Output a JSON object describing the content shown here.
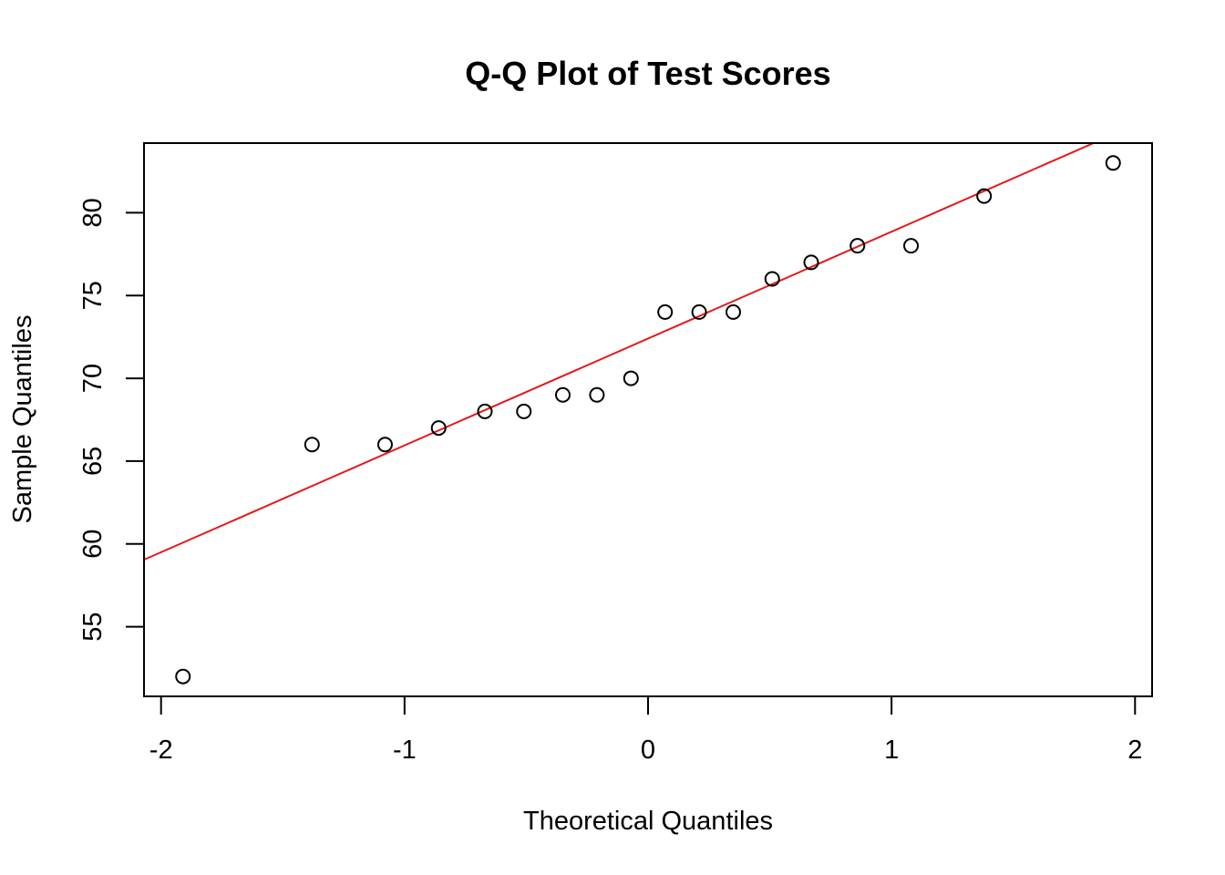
{
  "chart_data": {
    "type": "scatter",
    "title": "Q-Q Plot of Test Scores",
    "xlabel": "Theoretical Quantiles",
    "ylabel": "Sample Quantiles",
    "xlim": [
      -2.07,
      2.07
    ],
    "ylim": [
      50.8,
      84.2
    ],
    "x_ticks": [
      -2,
      -1,
      0,
      1,
      2
    ],
    "x_tick_labels": [
      "-2",
      "-1",
      "0",
      "1",
      "2"
    ],
    "y_ticks": [
      55,
      60,
      65,
      70,
      75,
      80
    ],
    "y_tick_labels": [
      "55",
      "60",
      "65",
      "70",
      "75",
      "80"
    ],
    "grid": false,
    "legend": "none",
    "series": [
      {
        "color": "#000000",
        "marker": "open-circle",
        "x": [
          -1.91,
          -1.38,
          -1.08,
          -0.86,
          -0.67,
          -0.51,
          -0.35,
          -0.21,
          -0.07,
          0.07,
          0.21,
          0.35,
          0.51,
          0.67,
          0.86,
          1.08,
          1.38,
          1.91
        ],
        "y": [
          52,
          66,
          66,
          67,
          68,
          68,
          69,
          69,
          70,
          74,
          74,
          74,
          76,
          77,
          78,
          78,
          81,
          83
        ]
      }
    ],
    "reference_line": {
      "color": "#e41a1c",
      "intercept": 72.4,
      "slope": 6.45
    }
  }
}
